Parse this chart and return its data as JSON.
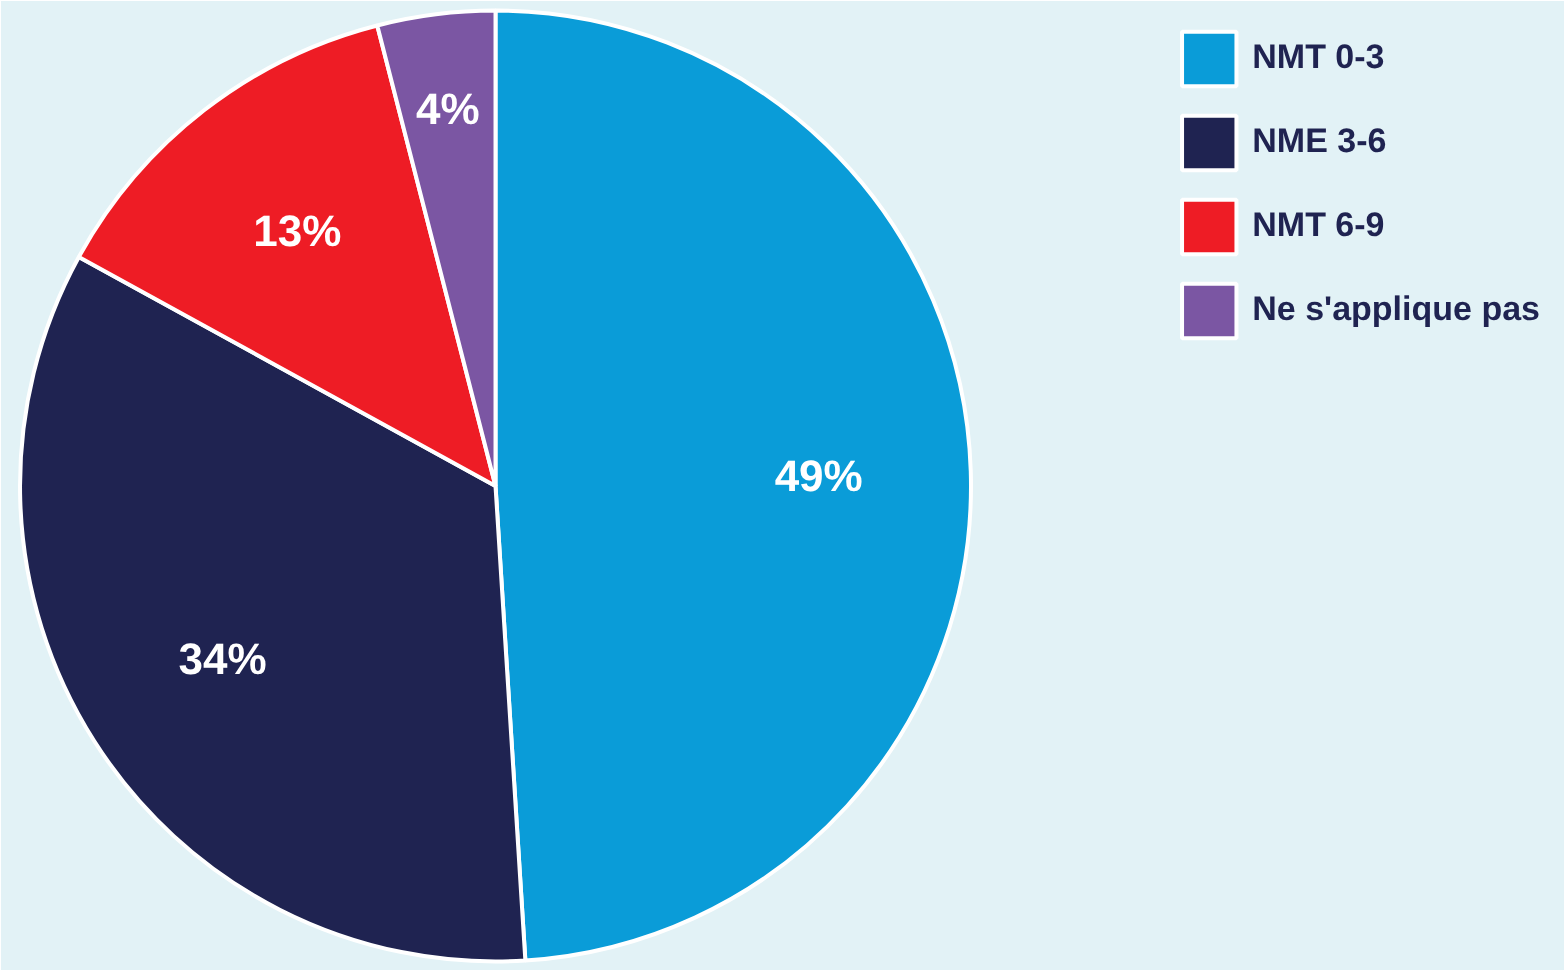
{
  "chart_data": {
    "type": "pie",
    "categories": [
      "NMT 0-3",
      "NME 3-6",
      "NMT 6-9",
      "Ne s'applique pas"
    ],
    "values": [
      49,
      34,
      13,
      4
    ],
    "colors": [
      "#0a9cd8",
      "#1f2351",
      "#ee1c25",
      "#7b56a3"
    ],
    "value_labels": [
      "49%",
      "34%",
      "13%",
      "4%"
    ],
    "legend": "top right"
  }
}
